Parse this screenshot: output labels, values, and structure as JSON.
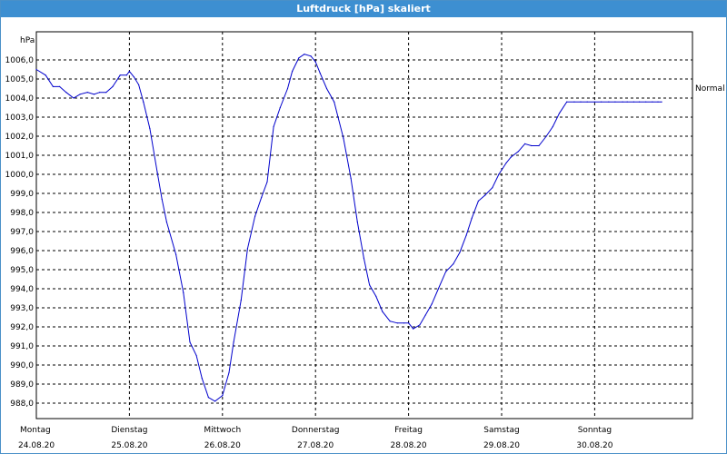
{
  "title": "Luftdruck [hPa] skaliert",
  "chart_data": {
    "type": "line",
    "title": "Luftdruck [hPa] skaliert",
    "ylabel": "hPa",
    "ylim": [
      987.3,
      1007.5
    ],
    "yticks": [
      "1006,0",
      "1005,0",
      "1004,0",
      "1003,0",
      "1002,0",
      "1001,0",
      "1000,0",
      "999,0",
      "998,0",
      "997,0",
      "996,0",
      "995,0",
      "994,0",
      "993,0",
      "992,0",
      "991,0",
      "990,0",
      "989,0",
      "988,0"
    ],
    "ytick_values": [
      1006,
      1005,
      1004,
      1003,
      1002,
      1001,
      1000,
      999,
      998,
      997,
      996,
      995,
      994,
      993,
      992,
      991,
      990,
      989,
      988
    ],
    "xlim": [
      0,
      7.0
    ],
    "days": [
      {
        "name": "Montag",
        "date": "24.08.20"
      },
      {
        "name": "Dienstag",
        "date": "25.08.20"
      },
      {
        "name": "Mittwoch",
        "date": "26.08.20"
      },
      {
        "name": "Donnerstag",
        "date": "27.08.20"
      },
      {
        "name": "Freitag",
        "date": "28.08.20"
      },
      {
        "name": "Samstag",
        "date": "29.08.20"
      },
      {
        "name": "Sonntag",
        "date": "30.08.20"
      }
    ],
    "series": [
      {
        "name": "Luftdruck",
        "color": "#0000cc",
        "x": [
          0.0,
          0.1,
          0.18,
          0.25,
          0.32,
          0.4,
          0.47,
          0.55,
          0.62,
          0.68,
          0.75,
          0.82,
          0.9,
          0.97,
          1.0,
          1.05,
          1.1,
          1.15,
          1.22,
          1.3,
          1.35,
          1.4,
          1.5,
          1.58,
          1.65,
          1.72,
          1.78,
          1.85,
          1.92,
          2.0,
          2.07,
          2.12,
          2.2,
          2.27,
          2.35,
          2.42,
          2.48,
          2.55,
          2.62,
          2.7,
          2.75,
          2.82,
          2.88,
          2.95,
          3.0,
          3.05,
          3.12,
          3.2,
          3.3,
          3.38,
          3.45,
          3.52,
          3.58,
          3.65,
          3.72,
          3.8,
          3.88,
          3.95,
          4.0,
          4.05,
          4.12,
          4.18,
          4.25,
          4.32,
          4.4,
          4.48,
          4.55,
          4.62,
          4.68,
          4.75,
          4.82,
          4.9,
          4.97,
          5.05,
          5.1,
          5.18,
          5.25,
          5.32,
          5.4,
          5.48,
          5.55,
          5.62,
          5.7,
          5.78,
          5.85,
          5.92,
          6.0,
          6.07,
          6.15,
          6.22,
          6.3,
          6.35,
          6.42,
          6.48,
          6.55,
          6.62,
          6.68,
          6.72
        ],
        "y": [
          1005.5,
          1005.2,
          1004.6,
          1004.6,
          1004.3,
          1004.0,
          1004.2,
          1004.3,
          1004.2,
          1004.3,
          1004.3,
          1004.6,
          1005.2,
          1005.2,
          1005.4,
          1005.1,
          1004.7,
          1003.8,
          1002.4,
          1000.1,
          998.7,
          997.5,
          995.8,
          993.8,
          991.2,
          990.5,
          989.3,
          988.3,
          988.1,
          988.4,
          989.6,
          991.2,
          993.4,
          996.1,
          997.8,
          998.8,
          999.6,
          1002.5,
          1003.5,
          1004.5,
          1005.4,
          1006.1,
          1006.3,
          1006.2,
          1005.9,
          1005.3,
          1004.5,
          1003.8,
          1001.9,
          999.8,
          997.5,
          995.6,
          994.2,
          993.6,
          992.8,
          992.3,
          992.2,
          992.2,
          992.2,
          991.9,
          992.1,
          992.6,
          993.2,
          994.0,
          994.9,
          995.3,
          995.9,
          996.8,
          997.7,
          998.6,
          998.9,
          999.3,
          1000.0,
          1000.6,
          1000.9,
          1001.2,
          1001.6,
          1001.5,
          1001.5,
          1002.0,
          1002.5,
          1003.2,
          1003.8,
          1003.8,
          1003.8,
          1003.8,
          1003.8,
          1003.8,
          1003.8,
          1003.8,
          1003.8,
          1003.8,
          1003.8,
          1003.8,
          1003.8,
          1003.8,
          1003.8,
          1003.8
        ]
      }
    ],
    "reference": {
      "label": "Normal",
      "value": 1003.7
    },
    "grid": true
  }
}
